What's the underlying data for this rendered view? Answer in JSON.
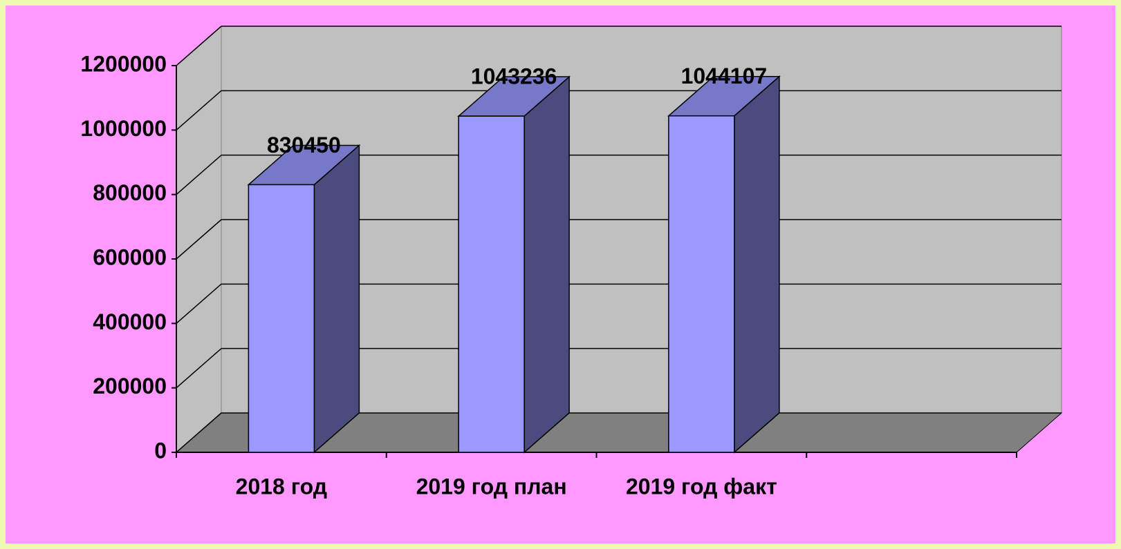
{
  "chart_data": {
    "type": "bar3d",
    "categories": [
      "2018 год",
      "2019 год план",
      "2019 год факт",
      null
    ],
    "values": [
      830450,
      1043236,
      1044107,
      null
    ],
    "color": "#9999ff",
    "side_color": "#4b4b7d",
    "top_color": "#7878c8",
    "wall_color": "#c0c0c0",
    "floor_color": "#808080",
    "ylim": [
      0,
      1200000
    ],
    "yticks": [
      0,
      200000,
      400000,
      600000,
      800000,
      1000000,
      1200000
    ],
    "grid": true
  }
}
